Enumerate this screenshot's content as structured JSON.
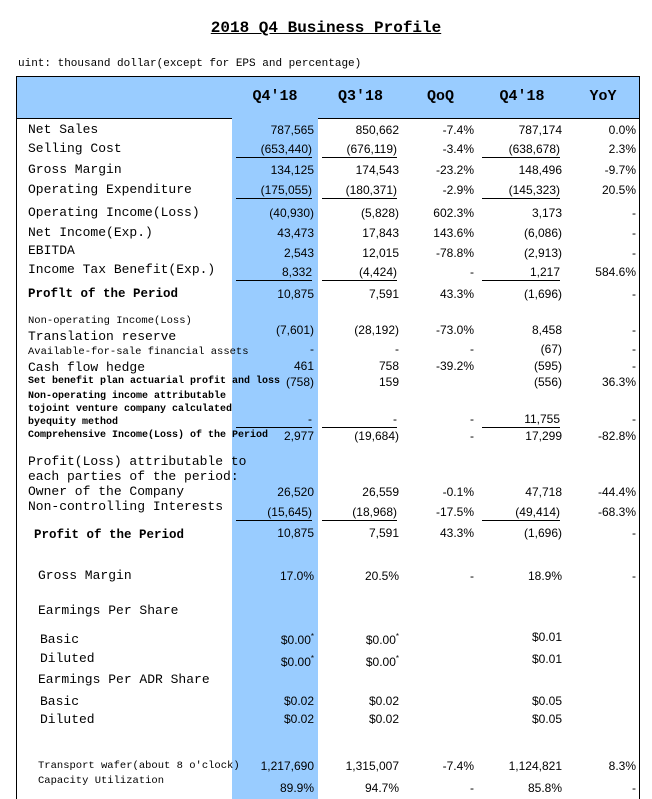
{
  "title": "2018 Q4 Business Profile",
  "unit_note": "uint: thousand dollar(except for EPS and percentage)",
  "columns": [
    "Q4'18",
    "Q3'18",
    "QoQ",
    "Q4'18",
    "YoY"
  ],
  "rows": [
    {
      "label": "Net Sales",
      "values": [
        "787,565",
        "850,662",
        "-7.4%",
        "787,174",
        "0.0%"
      ]
    },
    {
      "label": "Selling Cost",
      "values": [
        "(653,440)",
        "(676,119)",
        "-3.4%",
        "(638,678)",
        "2.3%"
      ]
    },
    {
      "label": "Gross Margin",
      "values": [
        "134,125",
        "174,543",
        "-23.2%",
        "148,496",
        "-9.7%"
      ]
    },
    {
      "label": "Operating Expenditure",
      "values": [
        "(175,055)",
        "(180,371)",
        "-2.9%",
        "(145,323)",
        "20.5%"
      ]
    },
    {
      "label": "Operating Income(Loss)",
      "values": [
        "(40,930)",
        "(5,828)",
        "602.3%",
        "3,173",
        "-"
      ]
    },
    {
      "label": "Net Income(Exp.)",
      "values": [
        "43,473",
        "17,843",
        "143.6%",
        "(6,086)",
        "-"
      ]
    },
    {
      "label": "EBITDA",
      "values": [
        "2,543",
        "12,015",
        "-78.8%",
        "(2,913)",
        "-"
      ]
    },
    {
      "label": "Income Tax Benefit(Exp.)",
      "values": [
        "8,332",
        "(4,424)",
        "-",
        "1,217",
        "584.6%"
      ]
    },
    {
      "label": "Proflt of the Period",
      "values": [
        "10,875",
        "7,591",
        "43.3%",
        "(1,696)",
        "-"
      ]
    },
    {
      "label": "Non-operating Income(Loss)"
    },
    {
      "label": "Translation reserve",
      "values": [
        "(7,601)",
        "(28,192)",
        "-73.0%",
        "8,458",
        "-"
      ]
    },
    {
      "label": "Available-for-sale financial assets",
      "values": [
        "-",
        "-",
        "-",
        "(67)",
        "-"
      ]
    },
    {
      "label": "Cash flow hedge",
      "values": [
        "461",
        "758",
        "-39.2%",
        "(595)",
        "-"
      ]
    },
    {
      "label": "Set benefit plan actuarial profit and loss",
      "values": [
        "(758)",
        "159",
        null,
        "(556)",
        "36.3%"
      ]
    },
    {
      "label": "Non-operating income attributable"
    },
    {
      "label": "tojoint venture company calculated"
    },
    {
      "label": "byequity method",
      "values": [
        "-",
        "-",
        "-",
        "11,755",
        "-"
      ]
    },
    {
      "label": "Comprehensive Income(Loss) of the Period",
      "values": [
        "2,977",
        "(19,684)",
        "-",
        "17,299",
        "-82.8%"
      ]
    },
    {
      "label": "Profit(Loss) attributable to"
    },
    {
      "label": "each parties of the period:"
    },
    {
      "label": "Owner of the Company",
      "values": [
        "26,520",
        "26,559",
        "-0.1%",
        "47,718",
        "-44.4%"
      ]
    },
    {
      "label": "Non-controlling Interests",
      "values": [
        "(15,645)",
        "(18,968)",
        "-17.5%",
        "(49,414)",
        "-68.3%"
      ]
    },
    {
      "label": "Profit of the Period",
      "values": [
        "10,875",
        "7,591",
        "43.3%",
        "(1,696)",
        "-"
      ]
    },
    {
      "label": "Gross Margin",
      "values": [
        "17.0%",
        "20.5%",
        "-",
        "18.9%",
        "-"
      ]
    },
    {
      "label": "Earmings Per Share"
    },
    {
      "label": "Basic",
      "values": [
        "$0.00*",
        "$0.00*",
        null,
        "$0.01",
        null
      ]
    },
    {
      "label": "Diluted",
      "values": [
        "$0.00*",
        "$0.00*",
        null,
        "$0.01",
        null
      ]
    },
    {
      "label": "Earmings Per ADR Share"
    },
    {
      "label": "Basic",
      "values": [
        "$0.02",
        "$0.02",
        null,
        "$0.05",
        null
      ]
    },
    {
      "label": "Diluted",
      "values": [
        "$0.02",
        "$0.02",
        null,
        "$0.05",
        null
      ]
    },
    {
      "label": "Transport wafer(about 8 o'clock)",
      "values": [
        "1,217,690",
        "1,315,007",
        "-7.4%",
        "1,124,821",
        "8.3%"
      ]
    },
    {
      "label": "Capacity Utilization",
      "values": [
        "89.9%",
        "94.7%",
        "-",
        "85.8%",
        "-"
      ]
    }
  ]
}
